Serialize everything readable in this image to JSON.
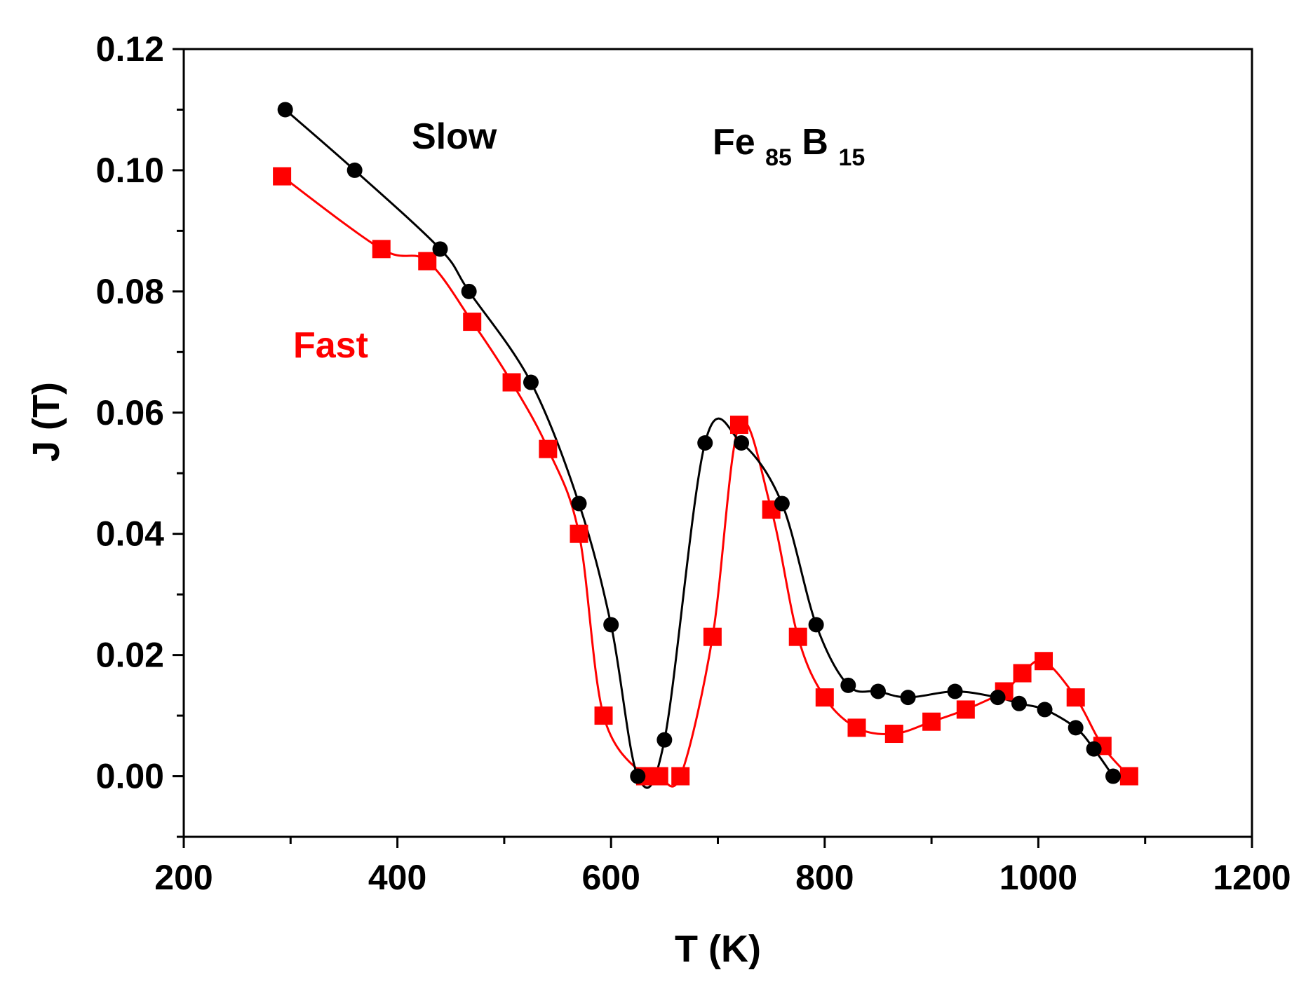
{
  "chart_data": {
    "type": "line",
    "title": "",
    "xlabel": "T (K)",
    "ylabel": "J (T)",
    "xlim": [
      200,
      1200
    ],
    "ylim": [
      -0.01,
      0.12
    ],
    "xticks": [
      200,
      400,
      600,
      800,
      1000,
      1200
    ],
    "xtick_labels": [
      "200",
      "400",
      "600",
      "800",
      "1000",
      "1200"
    ],
    "yticks": [
      0.0,
      0.02,
      0.04,
      0.06,
      0.08,
      0.1,
      0.12
    ],
    "ytick_labels": [
      "0.00",
      "0.02",
      "0.04",
      "0.06",
      "0.08",
      "0.10",
      "0.12"
    ],
    "grid": false,
    "annotations": {
      "slow": {
        "text": "Slow",
        "color": "#000000"
      },
      "fast": {
        "text": "Fast",
        "color": "#ff0000"
      },
      "compound": {
        "base1": "Fe",
        "sub1": "85",
        "base2": "B",
        "sub2": "15",
        "color": "#000000"
      }
    },
    "series": [
      {
        "name": "Slow",
        "color": "#000000",
        "marker": "circle",
        "x": [
          295,
          360,
          440,
          467,
          525,
          570,
          600,
          625,
          650,
          688,
          722,
          760,
          792,
          822,
          850,
          878,
          922,
          962,
          982,
          1006,
          1035,
          1052,
          1070
        ],
        "y": [
          0.11,
          0.1,
          0.087,
          0.08,
          0.065,
          0.045,
          0.025,
          0.0,
          0.006,
          0.055,
          0.055,
          0.045,
          0.025,
          0.015,
          0.014,
          0.013,
          0.014,
          0.013,
          0.012,
          0.011,
          0.008,
          0.0045,
          0.0
        ]
      },
      {
        "name": "Fast",
        "color": "#ff0000",
        "marker": "square",
        "x": [
          292,
          385,
          428,
          470,
          507,
          541,
          570,
          593,
          632,
          645,
          665,
          695,
          720,
          750,
          775,
          800,
          830,
          865,
          900,
          932,
          968,
          985,
          1005,
          1035,
          1060,
          1085
        ],
        "y": [
          0.099,
          0.087,
          0.085,
          0.075,
          0.065,
          0.054,
          0.04,
          0.01,
          0.0,
          0.0,
          0.0,
          0.023,
          0.058,
          0.044,
          0.023,
          0.013,
          0.008,
          0.007,
          0.009,
          0.011,
          0.014,
          0.017,
          0.019,
          0.013,
          0.005,
          0.0
        ]
      }
    ]
  }
}
